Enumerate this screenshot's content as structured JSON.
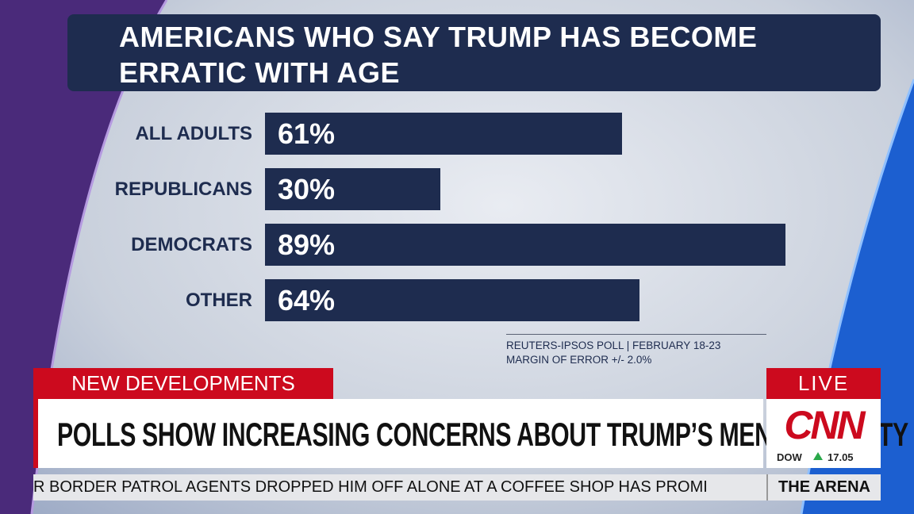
{
  "chart_data": {
    "type": "hbar",
    "title": "AMERICANS WHO SAY TRUMP HAS BECOME ERRATIC WITH AGE",
    "categories": [
      "ALL ADULTS",
      "REPUBLICANS",
      "DEMOCRATS",
      "OTHER"
    ],
    "values": [
      61,
      30,
      89,
      64
    ],
    "value_labels": [
      "61%",
      "30%",
      "89%",
      "64%"
    ],
    "color": "#1e2c4f",
    "xlim": [
      0,
      100
    ],
    "source": "REUTERS-IPSOS POLL | FEBRUARY 18-23",
    "note": "MARGIN OF ERROR +/- 2.0%"
  },
  "chyron": {
    "banner": "NEW DEVELOPMENTS",
    "headline": "POLLS SHOW INCREASING CONCERNS ABOUT TRUMP’S MENTAL ACUITY",
    "live": "LIVE",
    "logo": "CNN",
    "index": "DOW",
    "index_change": 17.05,
    "ticker": "R BORDER PATROL AGENTS DROPPED HIM OFF ALONE AT A COFFEE SHOP HAS PROMI",
    "show": "THE ARENA"
  }
}
